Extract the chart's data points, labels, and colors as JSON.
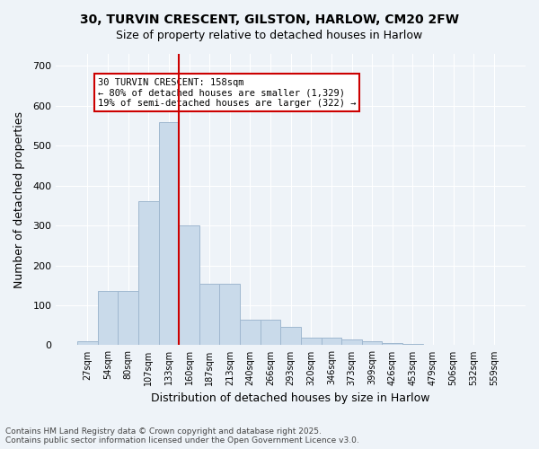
{
  "title_line1": "30, TURVIN CRESCENT, GILSTON, HARLOW, CM20 2FW",
  "title_line2": "Size of property relative to detached houses in Harlow",
  "xlabel": "Distribution of detached houses by size in Harlow",
  "ylabel": "Number of detached properties",
  "bar_labels": [
    "27sqm",
    "54sqm",
    "80sqm",
    "107sqm",
    "133sqm",
    "160sqm",
    "187sqm",
    "213sqm",
    "240sqm",
    "266sqm",
    "293sqm",
    "320sqm",
    "346sqm",
    "373sqm",
    "399sqm",
    "426sqm",
    "453sqm",
    "479sqm",
    "506sqm",
    "532sqm",
    "559sqm"
  ],
  "bar_heights": [
    10,
    135,
    135,
    360,
    560,
    300,
    155,
    155,
    65,
    65,
    45,
    20,
    20,
    15,
    10,
    5,
    3,
    2,
    1,
    1,
    0
  ],
  "bar_color": "#c9daea",
  "bar_edge_color": "#a0b8d0",
  "vline_x": 5,
  "vline_color": "#cc0000",
  "annotation_text": "30 TURVIN CRESCENT: 158sqm\n← 80% of detached houses are smaller (1,329)\n19% of semi-detached houses are larger (322) →",
  "annotation_box_color": "#ffffff",
  "annotation_box_edge": "#cc0000",
  "ylim": [
    0,
    730
  ],
  "yticks": [
    0,
    100,
    200,
    300,
    400,
    500,
    600,
    700
  ],
  "footer_line1": "Contains HM Land Registry data © Crown copyright and database right 2025.",
  "footer_line2": "Contains public sector information licensed under the Open Government Licence v3.0.",
  "bg_color": "#eef3f8",
  "plot_bg_color": "#eef3f8"
}
